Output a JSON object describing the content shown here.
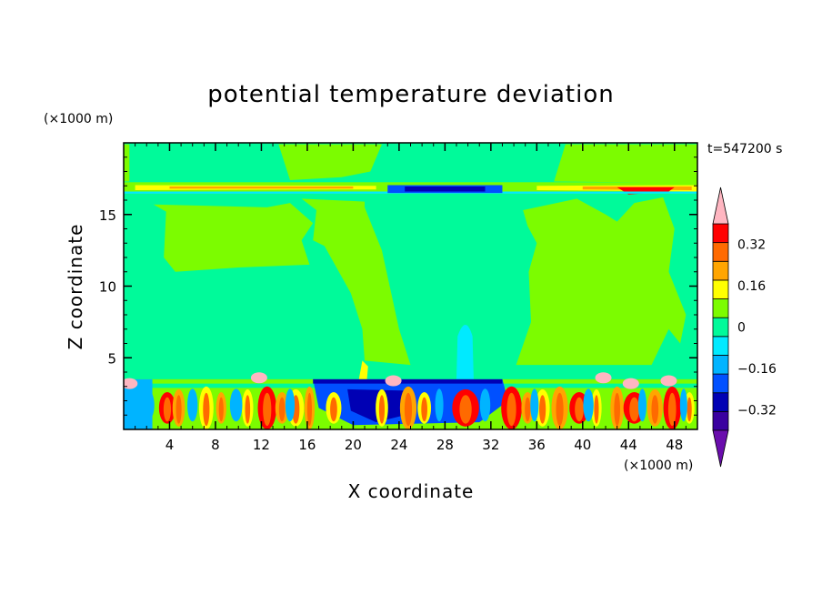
{
  "chart_data": {
    "type": "heatmap",
    "title": "potential temperature deviation",
    "xlabel": "X coordinate",
    "ylabel": "Z coordinate",
    "x_unit": "(×1000 m)",
    "y_unit": "(×1000 m)",
    "time_label": "t=547200 s",
    "xlim": [
      0,
      50
    ],
    "ylim": [
      0,
      20
    ],
    "x_ticks": [
      "4",
      "8",
      "12",
      "16",
      "20",
      "24",
      "28",
      "32",
      "36",
      "40",
      "44",
      "48"
    ],
    "y_ticks": [
      "5",
      "10",
      "15"
    ],
    "colorbar": {
      "levels": [
        -0.48,
        -0.4,
        -0.32,
        -0.24,
        -0.16,
        -0.08,
        0,
        0.08,
        0.16,
        0.24,
        0.32,
        0.4
      ],
      "tick_labels": [
        "0.32",
        "0.16",
        "0",
        "−0.16",
        "−0.32"
      ],
      "tick_values": [
        0.32,
        0.16,
        0,
        -0.16,
        -0.32
      ],
      "colors": [
        "#6a0dad",
        "#3a00a0",
        "#0000b4",
        "#0050ff",
        "#00b4ff",
        "#00eaff",
        "#00fa9a",
        "#7cfc00",
        "#ffff00",
        "#ffa500",
        "#ff6a00",
        "#ff0000",
        "#ffb6c1"
      ]
    },
    "fields": {
      "background_value": 0,
      "band_1": {
        "z_bottom": 16.5,
        "z_top": 17.2,
        "description_value": 0.24
      },
      "cold_band": {
        "x": [
          23,
          33
        ],
        "z": [
          16.5,
          17.2
        ],
        "value": -0.4
      },
      "warm_regions_x": [
        [
          2.5,
          12.5
        ],
        [
          31,
          37
        ],
        [
          37,
          49
        ]
      ],
      "cool_regions_x": [
        [
          0,
          2.5
        ],
        [
          12.5,
          31
        ],
        [
          37,
          37
        ]
      ],
      "boundary_layer_top": 3.5
    }
  }
}
